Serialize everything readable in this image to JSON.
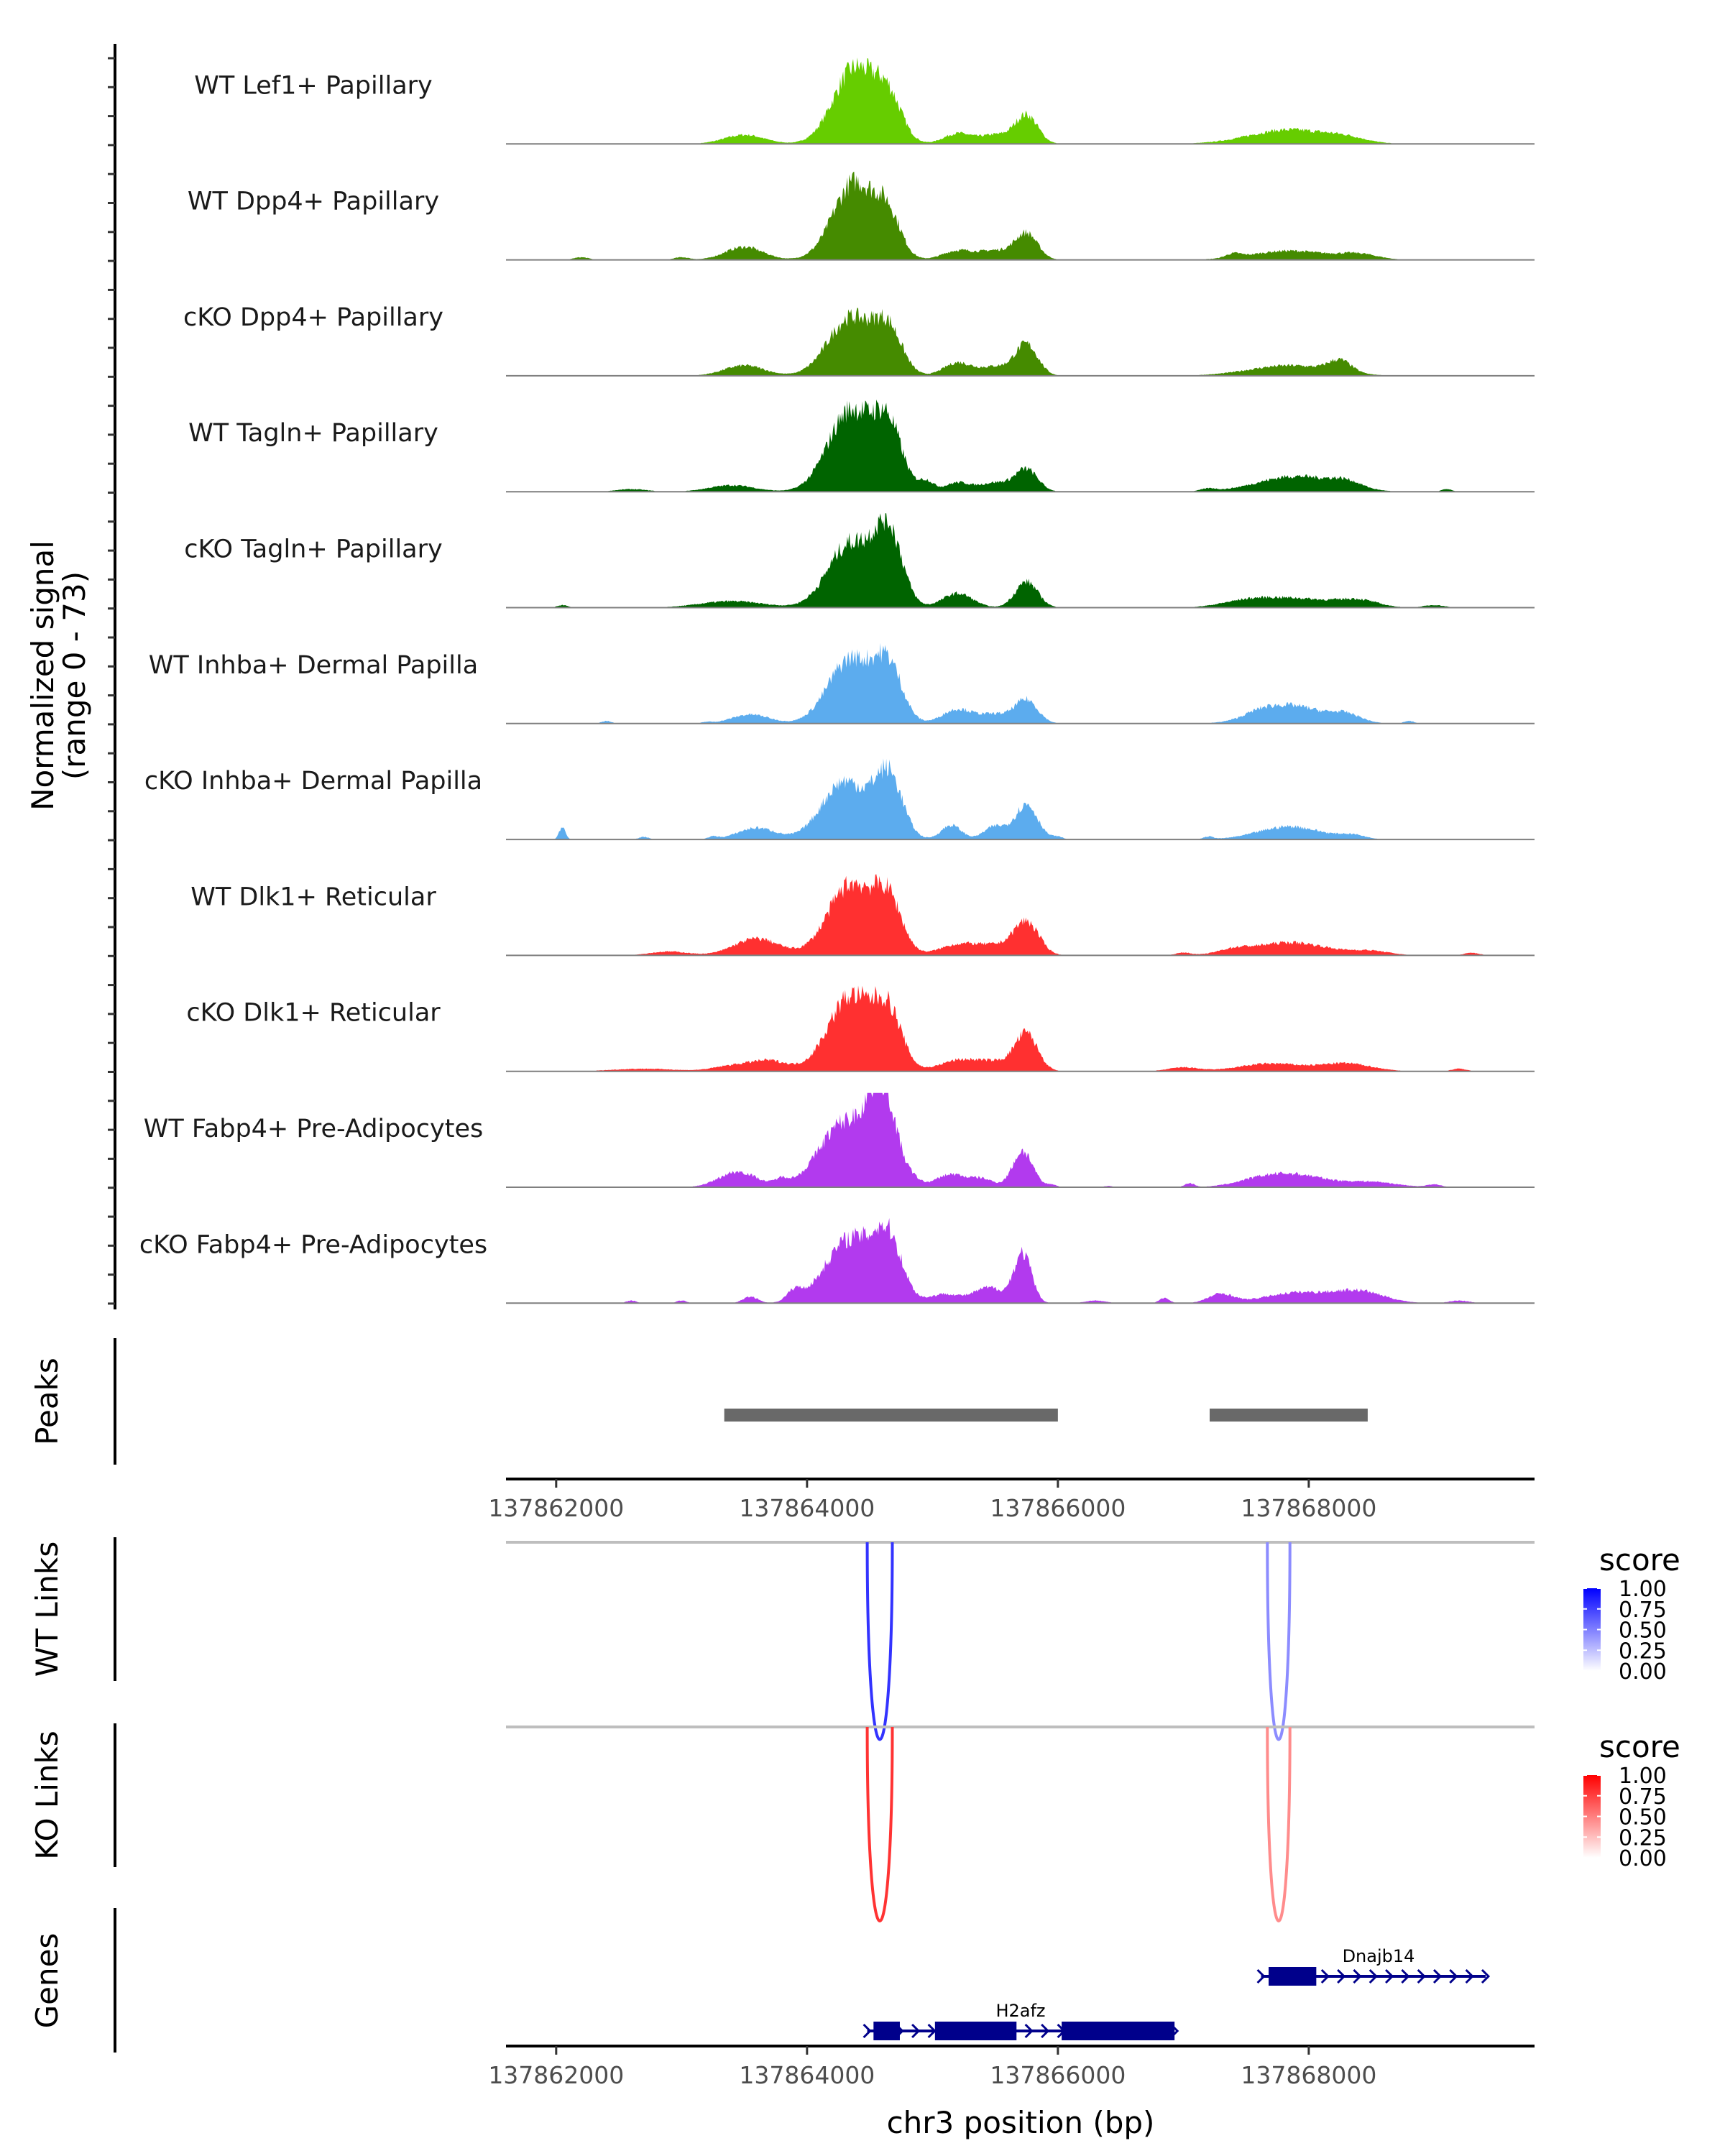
{
  "chart_data": {
    "type": "area",
    "title": "",
    "xlabel": "chr3 position (bp)",
    "ylabel": "Normalized signal\n(range 0 - 73)",
    "ylabel_lines": [
      "Normalized signal",
      "(range 0 - 73)"
    ],
    "chromosome": "chr3",
    "xlim": [
      137861600,
      137869800
    ],
    "ylim": [
      0,
      73
    ],
    "x_ticks": [
      137862000,
      137864000,
      137866000,
      137868000
    ],
    "x_tick_labels": [
      "137862000",
      "137864000",
      "137866000",
      "137868000"
    ],
    "grid": false,
    "coverage_tracks": [
      {
        "name": "WT Lef1+ Papillary",
        "color": "#66CD00",
        "peaks": [
          [
            137863500,
            160,
            7
          ],
          [
            137864380,
            170,
            58
          ],
          [
            137864650,
            110,
            30
          ],
          [
            137865200,
            110,
            8
          ],
          [
            137865500,
            120,
            7
          ],
          [
            137865750,
            90,
            22
          ],
          [
            137867850,
            320,
            11
          ],
          [
            137868300,
            150,
            3
          ]
        ]
      },
      {
        "name": "WT Dpp4+ Papillary",
        "color": "#458B00",
        "peaks": [
          [
            137862200,
            60,
            2
          ],
          [
            137863000,
            60,
            2
          ],
          [
            137863500,
            150,
            10
          ],
          [
            137864380,
            170,
            60
          ],
          [
            137864650,
            100,
            28
          ],
          [
            137865200,
            120,
            7
          ],
          [
            137865500,
            130,
            7
          ],
          [
            137865750,
            90,
            20
          ],
          [
            137867400,
            60,
            3
          ],
          [
            137867850,
            300,
            7
          ],
          [
            137868400,
            150,
            4
          ]
        ]
      },
      {
        "name": "cKO Dpp4+ Papillary",
        "color": "#458B00",
        "peaks": [
          [
            137863500,
            160,
            8
          ],
          [
            137864350,
            180,
            45
          ],
          [
            137864650,
            110,
            32
          ],
          [
            137865200,
            110,
            10
          ],
          [
            137865500,
            120,
            7
          ],
          [
            137865750,
            90,
            24
          ],
          [
            137867850,
            320,
            8
          ],
          [
            137868250,
            90,
            9
          ]
        ]
      },
      {
        "name": "WT Tagln+ Papillary",
        "color": "#006400",
        "peaks": [
          [
            137862600,
            120,
            2
          ],
          [
            137863400,
            180,
            5
          ],
          [
            137864350,
            180,
            63
          ],
          [
            137864650,
            110,
            45
          ],
          [
            137864950,
            60,
            8
          ],
          [
            137865200,
            100,
            7
          ],
          [
            137865500,
            120,
            7
          ],
          [
            137865750,
            90,
            17
          ],
          [
            137867200,
            60,
            2
          ],
          [
            137867900,
            300,
            12
          ],
          [
            137868300,
            120,
            5
          ],
          [
            137869100,
            40,
            2
          ]
        ]
      },
      {
        "name": "cKO Tagln+ Papillary",
        "color": "#006400",
        "peaks": [
          [
            137862050,
            40,
            2
          ],
          [
            137863400,
            250,
            5
          ],
          [
            137864350,
            180,
            50
          ],
          [
            137864650,
            110,
            55
          ],
          [
            137865200,
            120,
            11
          ],
          [
            137865750,
            90,
            20
          ],
          [
            137867500,
            200,
            4
          ],
          [
            137867900,
            300,
            7
          ],
          [
            137868400,
            150,
            5
          ],
          [
            137869000,
            80,
            2
          ]
        ]
      },
      {
        "name": "WT Inhba+ Dermal Papilla",
        "color": "#5CACEE",
        "peaks": [
          [
            137862400,
            40,
            2
          ],
          [
            137863200,
            40,
            1
          ],
          [
            137863550,
            150,
            7
          ],
          [
            137864350,
            180,
            50
          ],
          [
            137864650,
            110,
            40
          ],
          [
            137865200,
            120,
            11
          ],
          [
            137865500,
            120,
            7
          ],
          [
            137865750,
            90,
            18
          ],
          [
            137867600,
            120,
            3
          ],
          [
            137867850,
            250,
            14
          ],
          [
            137868300,
            120,
            6
          ],
          [
            137868800,
            40,
            2
          ]
        ]
      },
      {
        "name": "cKO Inhba+ Dermal Papilla",
        "color": "#5CACEE",
        "peaks": [
          [
            137862050,
            25,
            10
          ],
          [
            137862700,
            40,
            2
          ],
          [
            137863250,
            40,
            2
          ],
          [
            137863600,
            150,
            9
          ],
          [
            137864300,
            180,
            45
          ],
          [
            137864650,
            110,
            48
          ],
          [
            137865150,
            80,
            11
          ],
          [
            137865500,
            90,
            10
          ],
          [
            137865750,
            90,
            27
          ],
          [
            137866000,
            40,
            2
          ],
          [
            137867200,
            40,
            2
          ],
          [
            137867850,
            250,
            10
          ],
          [
            137868350,
            100,
            3
          ]
        ]
      },
      {
        "name": "WT Dlk1+ Reticular",
        "color": "#FF3030",
        "peaks": [
          [
            137862900,
            150,
            3
          ],
          [
            137863600,
            180,
            13
          ],
          [
            137864350,
            180,
            55
          ],
          [
            137864650,
            110,
            38
          ],
          [
            137865200,
            150,
            8
          ],
          [
            137865500,
            150,
            7
          ],
          [
            137865750,
            100,
            25
          ],
          [
            137867000,
            60,
            2
          ],
          [
            137867400,
            120,
            3
          ],
          [
            137867850,
            300,
            10
          ],
          [
            137868500,
            150,
            3
          ],
          [
            137869300,
            60,
            2
          ]
        ]
      },
      {
        "name": "cKO Dlk1+ Reticular",
        "color": "#FF3030",
        "peaks": [
          [
            137862700,
            250,
            2
          ],
          [
            137863400,
            150,
            4
          ],
          [
            137863700,
            150,
            8
          ],
          [
            137864350,
            180,
            58
          ],
          [
            137864650,
            110,
            40
          ],
          [
            137865200,
            150,
            8
          ],
          [
            137865500,
            150,
            7
          ],
          [
            137865750,
            90,
            28
          ],
          [
            137867000,
            120,
            3
          ],
          [
            137867700,
            250,
            6
          ],
          [
            137868300,
            200,
            6
          ],
          [
            137869200,
            60,
            2
          ]
        ]
      },
      {
        "name": "WT Fabp4+ Pre-Adipocytes",
        "color": "#B23AEE",
        "peaks": [
          [
            137863450,
            150,
            12
          ],
          [
            137863800,
            60,
            5
          ],
          [
            137864300,
            200,
            50
          ],
          [
            137864600,
            110,
            68
          ],
          [
            137864850,
            60,
            4
          ],
          [
            137865150,
            120,
            10
          ],
          [
            137865400,
            90,
            6
          ],
          [
            137865720,
            80,
            28
          ],
          [
            137865950,
            40,
            2
          ],
          [
            137866400,
            40,
            1
          ],
          [
            137867050,
            40,
            3
          ],
          [
            137867600,
            200,
            4
          ],
          [
            137867900,
            250,
            9
          ],
          [
            137868500,
            200,
            4
          ],
          [
            137869000,
            60,
            2
          ]
        ]
      },
      {
        "name": "cKO Fabp4+ Pre-Adipocytes",
        "color": "#B23AEE",
        "peaks": [
          [
            137862600,
            40,
            2
          ],
          [
            137863000,
            40,
            2
          ],
          [
            137863550,
            60,
            5
          ],
          [
            137863900,
            60,
            8
          ],
          [
            137864350,
            200,
            50
          ],
          [
            137864650,
            110,
            42
          ],
          [
            137865100,
            120,
            7
          ],
          [
            137865450,
            120,
            12
          ],
          [
            137865720,
            70,
            38
          ],
          [
            137866300,
            80,
            2
          ],
          [
            137866850,
            40,
            4
          ],
          [
            137867300,
            100,
            7
          ],
          [
            137867900,
            250,
            8
          ],
          [
            137868400,
            200,
            9
          ],
          [
            137869200,
            80,
            2
          ]
        ]
      }
    ],
    "peaks_track": {
      "label": "Peaks",
      "color": "#696969",
      "regions": [
        [
          137863340,
          137866000
        ],
        [
          137867210,
          137868470
        ]
      ]
    },
    "link_tracks": [
      {
        "label": "WT Links",
        "legend_title": "score",
        "low_color": "#FFFFFF",
        "high_color": "#0000FF",
        "links": [
          {
            "start": 137864480,
            "end": 137864680,
            "score": 0.8
          },
          {
            "start": 137867670,
            "end": 137867850,
            "score": 0.45
          }
        ]
      },
      {
        "label": "KO Links",
        "legend_title": "score",
        "low_color": "#FFFFFF",
        "high_color": "#FF0000",
        "links": [
          {
            "start": 137864480,
            "end": 137864680,
            "score": 0.8
          },
          {
            "start": 137867670,
            "end": 137867850,
            "score": 0.45
          }
        ]
      }
    ],
    "legend_ticks": [
      "1.00",
      "0.75",
      "0.50",
      "0.25",
      "0.00"
    ],
    "gene_track": {
      "label": "Genes",
      "color": "#00008B",
      "genes": [
        {
          "name": "Dnajb14",
          "strand": "+",
          "row": 0,
          "start": 137867620,
          "end": 137869410,
          "exons": [
            [
              137867680,
              137868060
            ]
          ]
        },
        {
          "name": "H2afz",
          "strand": "+",
          "row": 1,
          "start": 137864480,
          "end": 137866930,
          "exons": [
            [
              137864530,
              137864740
            ],
            [
              137865020,
              137865670
            ],
            [
              137866030,
              137866930
            ]
          ]
        }
      ]
    }
  }
}
